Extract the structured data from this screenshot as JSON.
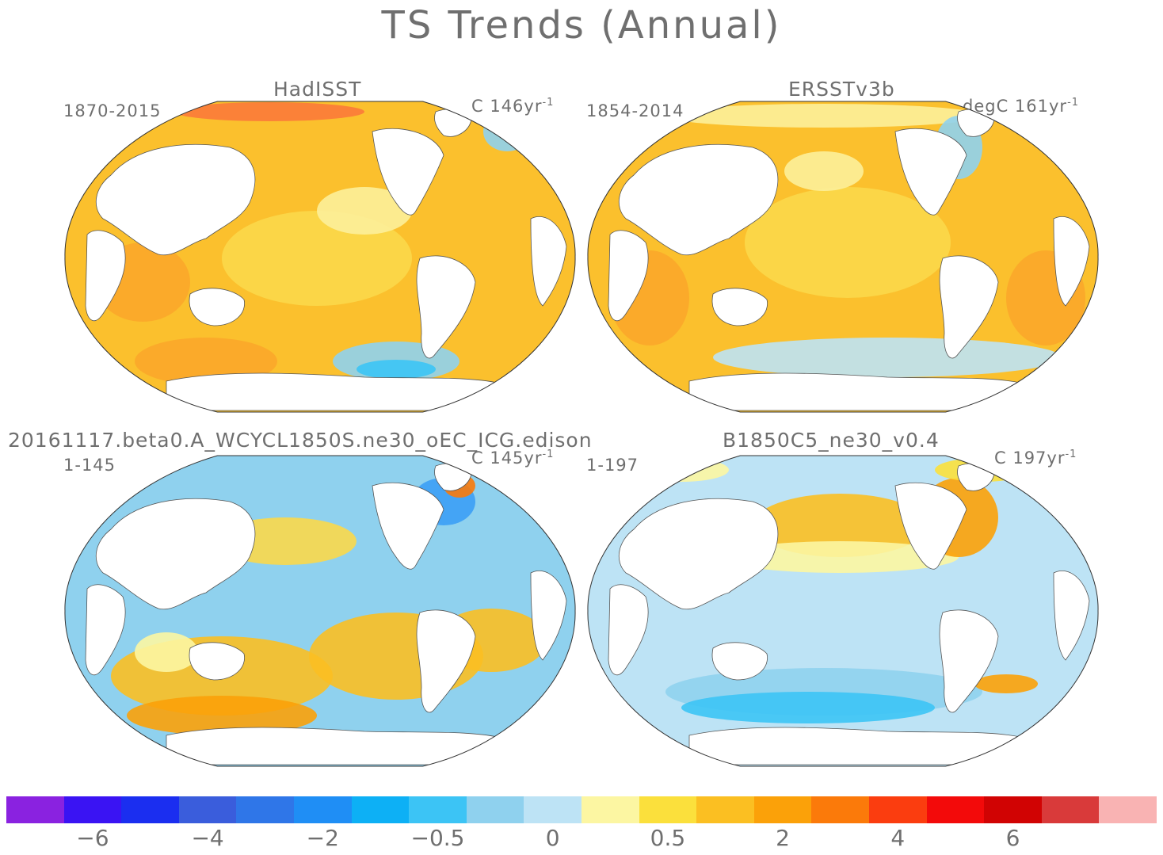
{
  "figure": {
    "title": "TS Trends (Annual)"
  },
  "panels": [
    {
      "id": "hadisst",
      "title": "HadISST",
      "period": "1870-2015",
      "units_prefix": "C 146yr",
      "units_exp": "-1"
    },
    {
      "id": "ersst",
      "title": "ERSSTv3b",
      "period": "1854-2014",
      "units_prefix": "degC 161yr",
      "units_exp": "-1"
    },
    {
      "id": "beta0",
      "title": "20161117.beta0.A_WCYCL1850S.ne30_oEC_ICG.edison",
      "period": "1-145",
      "units_prefix": "C 145yr",
      "units_exp": "-1"
    },
    {
      "id": "b1850",
      "title": "B1850C5_ne30_v0.4",
      "period": "1-197",
      "units_prefix": "C 197yr",
      "units_exp": "-1"
    }
  ],
  "colorbar": {
    "colors": [
      "#8a22e0",
      "#3a13f3",
      "#1b2ef0",
      "#3a5ddc",
      "#2f76e8",
      "#1f8ef5",
      "#0db0f5",
      "#3cc4f5",
      "#8fd1ee",
      "#bde3f5",
      "#fcf6a2",
      "#fbe03c",
      "#fbbf22",
      "#fba109",
      "#fb7a0a",
      "#fb3d0f",
      "#f30a0a",
      "#d10303",
      "#d93a3a",
      "#f9b3b3"
    ],
    "tick_labels": [
      "−6",
      "−4",
      "−2",
      "−0.5",
      "0",
      "0.5",
      "2",
      "4",
      "6"
    ]
  }
}
